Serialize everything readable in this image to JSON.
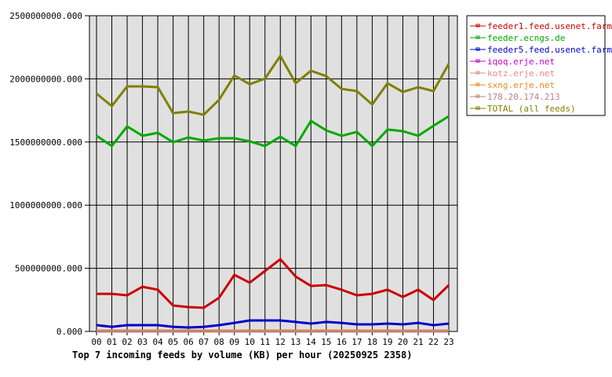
{
  "chart_data": {
    "type": "line",
    "title": "Top 7 incoming feeds by volume (KB) per hour (20250925 2358)",
    "xlabel": "",
    "ylabel": "",
    "ylim": [
      0,
      2500000000
    ],
    "yticks": [
      "0.000",
      "500000000.000",
      "1000000000.000",
      "1500000000.000",
      "2000000000.000",
      "2500000000.000"
    ],
    "grid": true,
    "legend_position": "right",
    "categories": [
      "00",
      "01",
      "02",
      "03",
      "04",
      "05",
      "06",
      "07",
      "08",
      "09",
      "10",
      "11",
      "12",
      "13",
      "14",
      "15",
      "16",
      "17",
      "18",
      "19",
      "20",
      "21",
      "22",
      "23"
    ],
    "series": [
      {
        "name": "feeder1.feed.usenet.farm",
        "color": "#cc0000",
        "values": [
          298000000,
          298000000,
          286000000,
          354000000,
          330000000,
          205000000,
          193000000,
          187000000,
          267000000,
          448000000,
          386000000,
          479000000,
          572000000,
          435000000,
          360000000,
          367000000,
          330000000,
          286000000,
          298000000,
          330000000,
          273000000,
          330000000,
          249000000,
          367000000
        ]
      },
      {
        "name": "feeder.ecngs.de",
        "color": "#00aa00",
        "values": [
          1549000000,
          1468000000,
          1623000000,
          1549000000,
          1573000000,
          1499000000,
          1536000000,
          1511000000,
          1530000000,
          1530000000,
          1505000000,
          1468000000,
          1542000000,
          1468000000,
          1667000000,
          1592000000,
          1549000000,
          1580000000,
          1468000000,
          1598000000,
          1586000000,
          1549000000,
          1629000000,
          1704000000
        ]
      },
      {
        "name": "feeder5.feed.usenet.farm",
        "color": "#0000cc",
        "values": [
          50000000,
          37000000,
          50000000,
          50000000,
          50000000,
          37000000,
          31000000,
          37000000,
          50000000,
          68000000,
          87000000,
          87000000,
          87000000,
          75000000,
          62000000,
          75000000,
          68000000,
          56000000,
          56000000,
          62000000,
          56000000,
          68000000,
          50000000,
          62000000
        ]
      },
      {
        "name": "iqoq.erje.net",
        "color": "#cc00cc",
        "values": [
          0,
          0,
          0,
          0,
          0,
          0,
          0,
          0,
          0,
          0,
          0,
          0,
          0,
          0,
          0,
          0,
          0,
          0,
          0,
          0,
          0,
          0,
          0,
          0
        ]
      },
      {
        "name": "kotz.erje.net",
        "color": "#ee8888",
        "values": [
          0,
          0,
          0,
          0,
          0,
          0,
          0,
          0,
          0,
          0,
          0,
          0,
          0,
          0,
          0,
          0,
          0,
          0,
          0,
          0,
          0,
          0,
          0,
          0
        ]
      },
      {
        "name": "sxng.erje.net",
        "color": "#ee8822",
        "values": [
          6000000,
          6000000,
          6000000,
          6000000,
          6000000,
          6000000,
          6000000,
          6000000,
          6000000,
          6000000,
          6000000,
          6000000,
          6000000,
          6000000,
          6000000,
          6000000,
          6000000,
          6000000,
          6000000,
          6000000,
          6000000,
          6000000,
          6000000,
          6000000
        ]
      },
      {
        "name": "178.20.174.213",
        "color": "#c08080",
        "values": [
          0,
          0,
          0,
          0,
          0,
          0,
          0,
          0,
          0,
          0,
          0,
          0,
          0,
          0,
          0,
          0,
          0,
          0,
          0,
          0,
          0,
          0,
          0,
          0
        ]
      },
      {
        "name": "TOTAL (all feeds)",
        "color": "#808000",
        "values": [
          1884000000,
          1784000000,
          1940000000,
          1940000000,
          1934000000,
          1729000000,
          1741000000,
          1716000000,
          1834000000,
          2027000000,
          1958000000,
          2002000000,
          2182000000,
          1965000000,
          2064000000,
          2021000000,
          1921000000,
          1903000000,
          1797000000,
          1965000000,
          1896000000,
          1934000000,
          1903000000,
          2120000000
        ]
      }
    ]
  }
}
